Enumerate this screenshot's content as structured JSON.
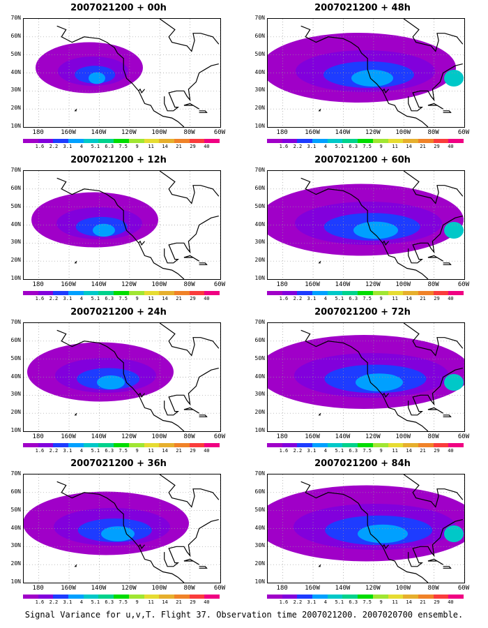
{
  "panels": [
    {
      "title": "2007021200 + 00h",
      "spread": 0.55
    },
    {
      "title": "2007021200 + 48h",
      "spread": 1.0
    },
    {
      "title": "2007021200 + 12h",
      "spread": 0.65
    },
    {
      "title": "2007021200 + 60h",
      "spread": 1.05
    },
    {
      "title": "2007021200 + 24h",
      "spread": 0.75
    },
    {
      "title": "2007021200 + 72h",
      "spread": 1.1
    },
    {
      "title": "2007021200 + 36h",
      "spread": 0.85
    },
    {
      "title": "2007021200 + 84h",
      "spread": 1.15
    }
  ],
  "lat_labels": [
    "70N",
    "60N",
    "50N",
    "40N",
    "30N",
    "20N",
    "10N"
  ],
  "lon_labels": [
    "180",
    "160W",
    "140W",
    "120W",
    "100W",
    "80W",
    "60W"
  ],
  "colorbar": {
    "colors": [
      "#a000c8",
      "#8200dc",
      "#1e3cff",
      "#00a0ff",
      "#00c8c8",
      "#00d28c",
      "#00dc00",
      "#a0e632",
      "#e6dc32",
      "#e6af2d",
      "#f08228",
      "#fa3c3c",
      "#f00082"
    ],
    "labels": [
      "1.6",
      "2.2",
      "3.1",
      "4",
      "5.1",
      "6.3",
      "7.5",
      "9",
      "11",
      "14",
      "21",
      "29",
      "40"
    ]
  },
  "shade_colors": [
    "#a000c8",
    "#8200dc",
    "#1e3cff",
    "#00a0ff",
    "#00c8c8"
  ],
  "caption": "Signal Variance for u,v,T. Flight 37. Observation time 2007021200. 2007020700 ensemble."
}
